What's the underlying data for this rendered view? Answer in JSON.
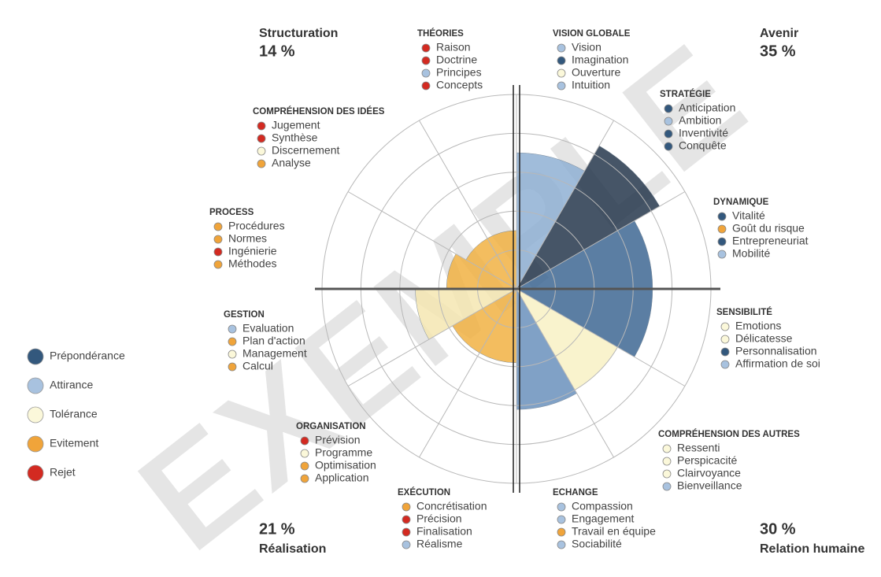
{
  "chart_data": {
    "type": "polar",
    "rlim": [
      0,
      5
    ],
    "rticks": [
      1,
      2,
      3,
      4,
      5
    ],
    "grid": true,
    "categories": [
      "VISION GLOBALE",
      "STRATÉGIE",
      "DYNAMIQUE",
      "SENSIBILITÉ",
      "COMPRÉHENSION DES AUTRES",
      "ECHANGE",
      "EXÉCUTION",
      "ORGANISATION",
      "GESTION",
      "PROCESS",
      "COMPRÉHENSION DES IDÉES",
      "THÉORIES"
    ],
    "values": [
      3.5,
      4.25,
      3.5,
      3.5,
      3,
      3.1,
      1.9,
      1.9,
      2.6,
      1.8,
      1.5,
      1.5
    ],
    "colors": [
      "#8fb0d4",
      "#26374c",
      "#3e6793",
      "#3e6793",
      "#f8f1c4",
      "#6a90bc",
      "#f1b243",
      "#f1b243",
      "#f4e6b2",
      "#f1b243",
      "#f1b243",
      "#f1b243"
    ],
    "items": [
      [
        {
          "label": "Vision",
          "level": "Attirance"
        },
        {
          "label": "Imagination",
          "level": "Prépondérance"
        },
        {
          "label": "Ouverture",
          "level": "Tolérance"
        },
        {
          "label": "Intuition",
          "level": "Attirance"
        }
      ],
      [
        {
          "label": "Anticipation",
          "level": "Prépondérance"
        },
        {
          "label": "Ambition",
          "level": "Attirance"
        },
        {
          "label": "Inventivité",
          "level": "Prépondérance"
        },
        {
          "label": "Conquête",
          "level": "Prépondérance"
        }
      ],
      [
        {
          "label": "Vitalité",
          "level": "Prépondérance"
        },
        {
          "label": "Goût du risque",
          "level": "Evitement"
        },
        {
          "label": "Entrepreneuriat",
          "level": "Prépondérance"
        },
        {
          "label": "Mobilité",
          "level": "Attirance"
        }
      ],
      [
        {
          "label": "Emotions",
          "level": "Tolérance"
        },
        {
          "label": "Délicatesse",
          "level": "Tolérance"
        },
        {
          "label": "Personnalisation",
          "level": "Prépondérance"
        },
        {
          "label": "Affirmation de soi",
          "level": "Attirance"
        }
      ],
      [
        {
          "label": "Ressenti",
          "level": "Tolérance"
        },
        {
          "label": "Perspicacité",
          "level": "Tolérance"
        },
        {
          "label": "Clairvoyance",
          "level": "Tolérance"
        },
        {
          "label": "Bienveillance",
          "level": "Attirance"
        }
      ],
      [
        {
          "label": "Compassion",
          "level": "Attirance"
        },
        {
          "label": "Engagement",
          "level": "Attirance"
        },
        {
          "label": "Travail en équipe",
          "level": "Evitement"
        },
        {
          "label": "Sociabilité",
          "level": "Attirance"
        }
      ],
      [
        {
          "label": "Concrétisation",
          "level": "Evitement"
        },
        {
          "label": "Précision",
          "level": "Rejet"
        },
        {
          "label": "Finalisation",
          "level": "Rejet"
        },
        {
          "label": "Réalisme",
          "level": "Attirance"
        }
      ],
      [
        {
          "label": "Prévision",
          "level": "Rejet"
        },
        {
          "label": "Programme",
          "level": "Tolérance"
        },
        {
          "label": "Optimisation",
          "level": "Evitement"
        },
        {
          "label": "Application",
          "level": "Evitement"
        }
      ],
      [
        {
          "label": "Evaluation",
          "level": "Attirance"
        },
        {
          "label": "Plan d'action",
          "level": "Evitement"
        },
        {
          "label": "Management",
          "level": "Tolérance"
        },
        {
          "label": "Calcul",
          "level": "Evitement"
        }
      ],
      [
        {
          "label": "Procédures",
          "level": "Evitement"
        },
        {
          "label": "Normes",
          "level": "Evitement"
        },
        {
          "label": "Ingénierie",
          "level": "Rejet"
        },
        {
          "label": "Méthodes",
          "level": "Evitement"
        }
      ],
      [
        {
          "label": "Jugement",
          "level": "Rejet"
        },
        {
          "label": "Synthèse",
          "level": "Rejet"
        },
        {
          "label": "Discernement",
          "level": "Tolérance"
        },
        {
          "label": "Analyse",
          "level": "Evitement"
        }
      ],
      [
        {
          "label": "Raison",
          "level": "Rejet"
        },
        {
          "label": "Doctrine",
          "level": "Rejet"
        },
        {
          "label": "Principes",
          "level": "Attirance"
        },
        {
          "label": "Concepts",
          "level": "Rejet"
        }
      ]
    ],
    "legend": [
      {
        "name": "Prépondérance",
        "color": "#33587d"
      },
      {
        "name": "Attirance",
        "color": "#a8c2df"
      },
      {
        "name": "Tolérance",
        "color": "#fbf8da"
      },
      {
        "name": "Evitement",
        "color": "#f0a43a"
      },
      {
        "name": "Rejet",
        "color": "#d32a21"
      }
    ],
    "quadrants": [
      {
        "label": "Structuration",
        "value": "14 %"
      },
      {
        "label": "Avenir",
        "value": "35 %"
      },
      {
        "label": "Réalisation",
        "value": "21 %"
      },
      {
        "label": "Relation humaine",
        "value": "30 %"
      }
    ],
    "watermark": "EXEMPLE"
  }
}
